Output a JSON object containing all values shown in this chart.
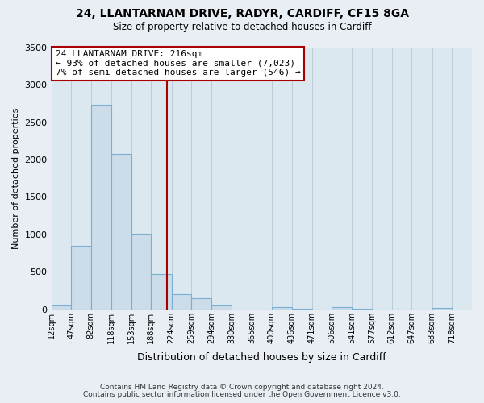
{
  "title": "24, LLANTARNAM DRIVE, RADYR, CARDIFF, CF15 8GA",
  "subtitle": "Size of property relative to detached houses in Cardiff",
  "xlabel": "Distribution of detached houses by size in Cardiff",
  "ylabel": "Number of detached properties",
  "footnote1": "Contains HM Land Registry data © Crown copyright and database right 2024.",
  "footnote2": "Contains public sector information licensed under the Open Government Licence v3.0.",
  "bin_edges": [
    12,
    47,
    82,
    118,
    153,
    188,
    224,
    259,
    294,
    330,
    365,
    400,
    436,
    471,
    506,
    541,
    577,
    612,
    647,
    683,
    718
  ],
  "bar_heights": [
    55,
    850,
    2730,
    2080,
    1010,
    465,
    205,
    145,
    55,
    0,
    0,
    30,
    10,
    0,
    25,
    10,
    0,
    0,
    0,
    15
  ],
  "tick_labels": [
    "12sqm",
    "47sqm",
    "82sqm",
    "118sqm",
    "153sqm",
    "188sqm",
    "224sqm",
    "259sqm",
    "294sqm",
    "330sqm",
    "365sqm",
    "400sqm",
    "436sqm",
    "471sqm",
    "506sqm",
    "541sqm",
    "577sqm",
    "612sqm",
    "647sqm",
    "683sqm",
    "718sqm"
  ],
  "bar_color": "#ccdce8",
  "bar_edge_color": "#7aafd4",
  "vline_x": 216,
  "vline_color": "#aa0000",
  "annotation_title": "24 LLANTARNAM DRIVE: 216sqm",
  "annotation_line1": "← 93% of detached houses are smaller (7,023)",
  "annotation_line2": "7% of semi-detached houses are larger (546) →",
  "annotation_box_color": "#ffffff",
  "annotation_box_edge": "#aa0000",
  "ylim": [
    0,
    3500
  ],
  "background_color": "#e8eef4",
  "plot_bg_color": "#dce8f0",
  "grid_color": "#b8ccd8",
  "yticks": [
    0,
    500,
    1000,
    1500,
    2000,
    2500,
    3000,
    3500
  ]
}
